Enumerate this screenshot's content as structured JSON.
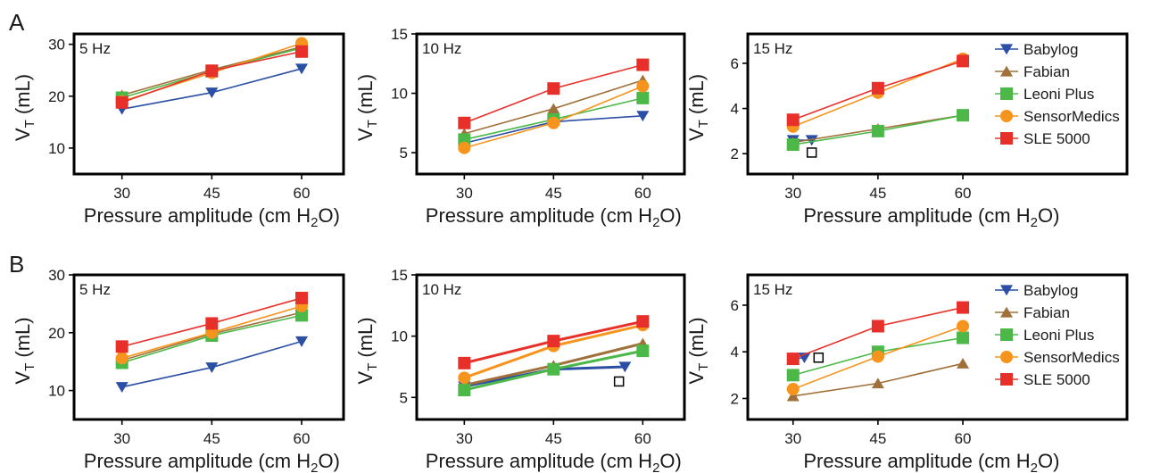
{
  "figure": {
    "row_labels": [
      "A",
      "B"
    ],
    "x_axis_label": "Pressure amplitude (cm H",
    "x_axis_label_sub": "2",
    "x_axis_label_end": "O)",
    "y_axis_label": "V",
    "y_axis_label_sub": "T",
    "y_axis_label_end": " (mL)"
  },
  "colors": {
    "Babylog": "#2a4fa5",
    "Fabian": "#a0703a",
    "Leoni Plus": "#4cb848",
    "SensorMedics": "#f7941d",
    "SLE 5000": "#e8302a"
  },
  "legend": [
    {
      "name": "Babylog",
      "marker": "triangle-down"
    },
    {
      "name": "Fabian",
      "marker": "triangle-up"
    },
    {
      "name": "Leoni Plus",
      "marker": "square"
    },
    {
      "name": "SensorMedics",
      "marker": "circle"
    },
    {
      "name": "SLE 5000",
      "marker": "square"
    }
  ],
  "chart_data": [
    {
      "type": "line",
      "row": "A",
      "title": "5 Hz",
      "x": [
        30,
        45,
        60
      ],
      "xlim": [
        22,
        67
      ],
      "ylim": [
        5,
        32
      ],
      "yticks": [
        10,
        20,
        30
      ],
      "xlabel": "Pressure amplitude (cm H2O)",
      "ylabel": "VT (mL)",
      "series": [
        {
          "name": "Babylog",
          "marker": "triangle-down",
          "values": [
            17.5,
            20.7,
            25.3
          ]
        },
        {
          "name": "Fabian",
          "marker": "triangle-up",
          "values": [
            20.2,
            25.1,
            29.5
          ]
        },
        {
          "name": "Leoni Plus",
          "marker": "square",
          "values": [
            19.7,
            24.8,
            29.3
          ]
        },
        {
          "name": "SensorMedics",
          "marker": "circle",
          "values": [
            19.0,
            24.5,
            30.2
          ]
        },
        {
          "name": "SLE 5000",
          "marker": "square",
          "values": [
            18.8,
            24.9,
            28.6
          ]
        }
      ]
    },
    {
      "type": "line",
      "row": "A",
      "title": "10 Hz",
      "x": [
        30,
        45,
        60
      ],
      "xlim": [
        22,
        67
      ],
      "ylim": [
        3.2,
        15
      ],
      "yticks": [
        5,
        10,
        15
      ],
      "xlabel": "Pressure amplitude (cm H2O)",
      "ylabel": "VT (mL)",
      "series": [
        {
          "name": "Babylog",
          "marker": "triangle-down",
          "values": [
            5.8,
            7.6,
            8.1
          ]
        },
        {
          "name": "Fabian",
          "marker": "triangle-up",
          "values": [
            6.6,
            8.7,
            11.1
          ]
        },
        {
          "name": "Leoni Plus",
          "marker": "square",
          "values": [
            6.1,
            7.8,
            9.6
          ]
        },
        {
          "name": "SensorMedics",
          "marker": "circle",
          "values": [
            5.4,
            7.5,
            10.6
          ]
        },
        {
          "name": "SLE 5000",
          "marker": "square",
          "values": [
            7.5,
            10.4,
            12.4
          ]
        }
      ]
    },
    {
      "type": "line",
      "row": "A",
      "title": "15 Hz",
      "x": [
        30,
        45,
        60
      ],
      "xlim": [
        22,
        89
      ],
      "ylim": [
        1.1,
        7.3
      ],
      "yticks": [
        2,
        4,
        6
      ],
      "xlabel": "Pressure amplitude (cm H2O)",
      "ylabel": "VT (mL)",
      "series": [
        {
          "name": "Babylog",
          "marker": "triangle-down",
          "values": [
            2.6,
            2.6
          ],
          "x": [
            30,
            33.3
          ]
        },
        {
          "name": "Fabian",
          "marker": "triangle-up",
          "values": [
            2.5,
            3.1,
            3.7
          ]
        },
        {
          "name": "Leoni Plus",
          "marker": "square",
          "values": [
            2.4,
            3.0,
            3.7
          ]
        },
        {
          "name": "SensorMedics",
          "marker": "circle",
          "values": [
            3.2,
            4.7,
            6.2
          ]
        },
        {
          "name": "SLE 5000",
          "marker": "square",
          "values": [
            3.5,
            4.9,
            6.1
          ]
        }
      ],
      "open_square": {
        "x": 33.3,
        "y": 2.05
      }
    },
    {
      "type": "line",
      "row": "B",
      "title": "5 Hz",
      "x": [
        30,
        45,
        60
      ],
      "xlim": [
        22,
        67
      ],
      "ylim": [
        5,
        30
      ],
      "yticks": [
        10,
        20,
        30
      ],
      "xlabel": "Pressure amplitude (cm H2O)",
      "ylabel": "VT (mL)",
      "series": [
        {
          "name": "Babylog",
          "marker": "triangle-down",
          "values": [
            10.6,
            14.0,
            18.5
          ]
        },
        {
          "name": "Fabian",
          "marker": "triangle-up",
          "values": [
            15.2,
            19.8,
            23.5
          ]
        },
        {
          "name": "Leoni Plus",
          "marker": "square",
          "values": [
            14.8,
            19.5,
            23.0
          ]
        },
        {
          "name": "SensorMedics",
          "marker": "circle",
          "values": [
            15.6,
            20.0,
            24.6
          ]
        },
        {
          "name": "SLE 5000",
          "marker": "square",
          "values": [
            17.6,
            21.6,
            26.0
          ]
        }
      ]
    },
    {
      "type": "line",
      "row": "B",
      "title": "10 Hz",
      "x": [
        30,
        45,
        60
      ],
      "xlim": [
        22,
        67
      ],
      "ylim": [
        3.2,
        15
      ],
      "yticks": [
        5,
        10,
        15
      ],
      "xlabel": "Pressure amplitude (cm H2O)",
      "ylabel": "VT (mL)",
      "series": [
        {
          "name": "Babylog",
          "marker": "triangle-down",
          "values": [
            5.9,
            7.3,
            7.5
          ],
          "x": [
            30,
            45,
            57
          ]
        },
        {
          "name": "Fabian",
          "marker": "triangle-up",
          "values": [
            6.0,
            7.6,
            9.4
          ]
        },
        {
          "name": "Leoni Plus",
          "marker": "square",
          "values": [
            5.6,
            7.3,
            8.8
          ]
        },
        {
          "name": "SensorMedics",
          "marker": "circle",
          "values": [
            6.6,
            9.2,
            10.9
          ]
        },
        {
          "name": "SLE 5000",
          "marker": "square",
          "values": [
            7.8,
            9.6,
            11.2
          ]
        }
      ],
      "open_square": {
        "x": 56,
        "y": 6.3
      }
    },
    {
      "type": "line",
      "row": "B",
      "title": "15 Hz",
      "x": [
        30,
        45,
        60
      ],
      "xlim": [
        22,
        89
      ],
      "ylim": [
        1.1,
        7.3
      ],
      "yticks": [
        2,
        4,
        6
      ],
      "xlabel": "Pressure amplitude (cm H2O)",
      "ylabel": "VT (mL)",
      "series": [
        {
          "name": "Babylog",
          "marker": "triangle-down",
          "values": [
            3.7,
            3.75
          ],
          "x": [
            30,
            32
          ]
        },
        {
          "name": "Fabian",
          "marker": "triangle-up",
          "values": [
            2.1,
            2.65,
            3.5
          ]
        },
        {
          "name": "Leoni Plus",
          "marker": "square",
          "values": [
            3.0,
            4.0,
            4.6
          ]
        },
        {
          "name": "SensorMedics",
          "marker": "circle",
          "values": [
            2.4,
            3.8,
            5.1
          ]
        },
        {
          "name": "SLE 5000",
          "marker": "square",
          "values": [
            3.7,
            5.1,
            5.9
          ]
        }
      ],
      "open_square": {
        "x": 34.5,
        "y": 3.75
      }
    }
  ]
}
